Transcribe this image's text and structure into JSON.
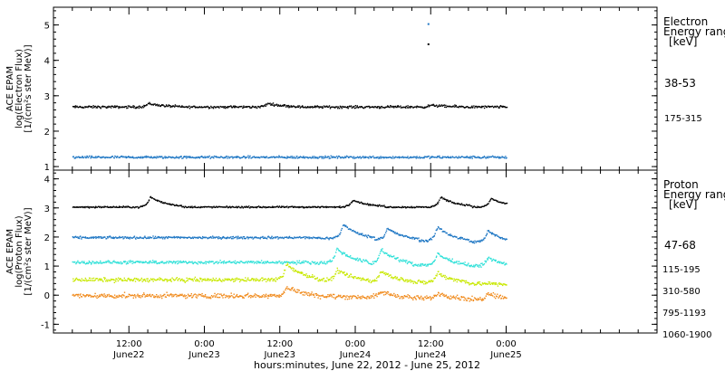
{
  "chart_data": [
    {
      "type": "scatter",
      "panel": "electron",
      "ylabel": [
        "ACE EPAM",
        "log(Electron Flux)",
        "[1/(cm²s ster MeV)]"
      ],
      "ylim": [
        0.9,
        5.5
      ],
      "yticks": [
        1,
        2,
        3,
        4,
        5
      ],
      "legend_title": [
        "Electron",
        "Energy range",
        "[keV]"
      ],
      "series": [
        {
          "name": "38-53",
          "color": "#000000",
          "base": 2.7,
          "noise": 0.05,
          "events": [
            {
              "x": 15.0,
              "dy": 0.1
            },
            {
              "x": 34.0,
              "dy": 0.1
            },
            {
              "x": 60.0,
              "dy": 0.05
            }
          ]
        },
        {
          "name": "175-315",
          "color": "#1f77c4",
          "base": 1.28,
          "noise": 0.05,
          "events": []
        }
      ],
      "outliers": [
        {
          "x": 59.5,
          "y": 5.05,
          "color": "#1f77c4"
        },
        {
          "x": 59.5,
          "y": 4.48,
          "color": "#000000"
        }
      ]
    },
    {
      "type": "scatter",
      "panel": "proton",
      "ylabel": [
        "ACE EPAM",
        "log(Proton Flux)",
        "[1/(cm²s ster MeV)]"
      ],
      "ylim": [
        -1.3,
        4.3
      ],
      "yticks": [
        -1,
        0,
        1,
        2,
        3,
        4
      ],
      "legend_title": [
        "Proton",
        "Energy range",
        "[keV]"
      ],
      "series": [
        {
          "name": "47-68",
          "color": "#000000",
          "base": 3.05,
          "noise": 0.04,
          "events": [
            {
              "x": 15.3,
              "dy": 0.35
            },
            {
              "x": 47.5,
              "dy": 0.25
            },
            {
              "x": 61.5,
              "dy": 0.35
            },
            {
              "x": 69.5,
              "dy": 0.3
            }
          ]
        },
        {
          "name": "115-195",
          "color": "#1f77c4",
          "base": 2.0,
          "noise": 0.06,
          "events": [
            {
              "x": 46.0,
              "dy": 0.5
            },
            {
              "x": 53.0,
              "dy": 0.4
            },
            {
              "x": 61.0,
              "dy": 0.5
            },
            {
              "x": 69.0,
              "dy": 0.4
            }
          ]
        },
        {
          "name": "310-580",
          "color": "#2ee0d8",
          "base": 1.15,
          "noise": 0.08,
          "events": [
            {
              "x": 45.0,
              "dy": 0.5
            },
            {
              "x": 52.0,
              "dy": 0.5
            },
            {
              "x": 61.0,
              "dy": 0.4
            },
            {
              "x": 69.0,
              "dy": 0.3
            }
          ]
        },
        {
          "name": "795-1193",
          "color": "#c8e800",
          "base": 0.55,
          "noise": 0.1,
          "events": [
            {
              "x": 37.0,
              "dy": 0.55
            },
            {
              "x": 45.0,
              "dy": 0.35
            },
            {
              "x": 52.0,
              "dy": 0.35
            },
            {
              "x": 61.0,
              "dy": 0.35
            }
          ]
        },
        {
          "name": "1060-1900",
          "color": "#f08a1c",
          "base": 0.0,
          "noise": 0.12,
          "events": [
            {
              "x": 37.0,
              "dy": 0.3
            },
            {
              "x": 52.0,
              "dy": 0.2
            },
            {
              "x": 61.0,
              "dy": 0.2
            },
            {
              "x": 69.0,
              "dy": 0.25
            }
          ]
        }
      ]
    }
  ],
  "xaxis": {
    "range_hours": [
      0,
      96
    ],
    "data_start": 3.0,
    "data_end": 72.0,
    "ticks": [
      {
        "x": 12,
        "l1": "12:00",
        "l2": "June22"
      },
      {
        "x": 24,
        "l1": "0:00",
        "l2": "June23"
      },
      {
        "x": 36,
        "l1": "12:00",
        "l2": "June23"
      },
      {
        "x": 48,
        "l1": "0:00",
        "l2": "June24"
      },
      {
        "x": 60,
        "l1": "12:00",
        "l2": "June24"
      },
      {
        "x": 72,
        "l1": "0:00",
        "l2": "June25"
      }
    ],
    "title": "hours:minutes, June 22, 2012 - June 25, 2012"
  }
}
